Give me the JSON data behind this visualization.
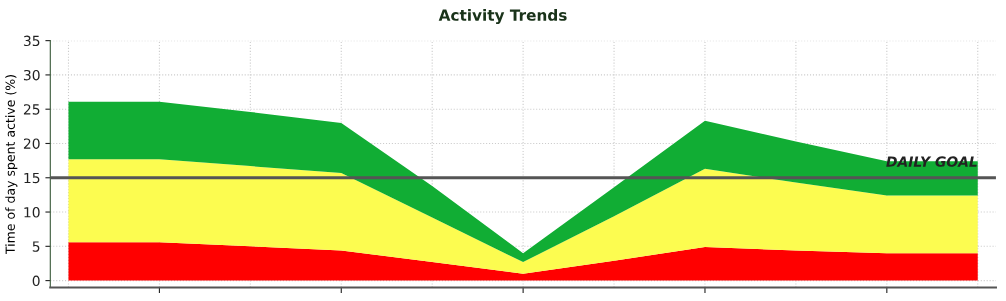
{
  "chart_data": {
    "type": "area",
    "stacked": true,
    "title": "Activity Trends",
    "ylabel": "Time of day spent active (%)",
    "categories": [
      null,
      null,
      null,
      null,
      null,
      null,
      null,
      null,
      null,
      null,
      null
    ],
    "series": [
      {
        "color": "#ff0000",
        "values": [
          5.6,
          5.6,
          5.0,
          4.4,
          2.7,
          1.0,
          2.9,
          4.9,
          4.4,
          4.0,
          4.0
        ]
      },
      {
        "color": "#fcfc50",
        "values": [
          12.1,
          12.1,
          11.7,
          11.3,
          6.5,
          1.7,
          6.5,
          11.4,
          9.9,
          8.4,
          8.4
        ]
      },
      {
        "color": "#11ad34",
        "values": [
          8.4,
          8.4,
          7.9,
          7.3,
          4.6,
          1.3,
          4.2,
          7.0,
          6.0,
          5.0,
          5.0
        ]
      }
    ],
    "ylim": [
      -1,
      35
    ],
    "yticks": [
      0,
      5,
      10,
      15,
      20,
      25,
      30,
      35
    ],
    "grid": true,
    "ref_lines": [
      {
        "axis": "y",
        "value": 15,
        "label": "DAILY GOAL",
        "color": "#555555"
      }
    ]
  }
}
